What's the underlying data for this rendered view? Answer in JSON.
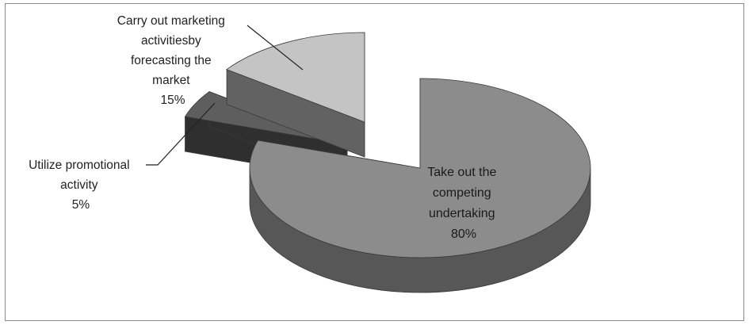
{
  "chart_data": {
    "type": "pie",
    "style": "3d-exploded",
    "title": "",
    "slices": [
      {
        "label_lines": [
          "Take out the",
          "competing",
          "undertaking"
        ],
        "percent_text": "80%",
        "value": 80,
        "color": "#8c8c8c"
      },
      {
        "label_lines": [
          "Utilize promotional",
          "activity"
        ],
        "percent_text": "5%",
        "value": 5,
        "color": "#5e5e5e"
      },
      {
        "label_lines": [
          "Carry out marketing",
          "activitiesby",
          "forecasting the",
          "market"
        ],
        "percent_text": "15%",
        "value": 15,
        "color": "#c4c4c4"
      }
    ],
    "legend": "none",
    "data_labels": "category-and-percent"
  }
}
